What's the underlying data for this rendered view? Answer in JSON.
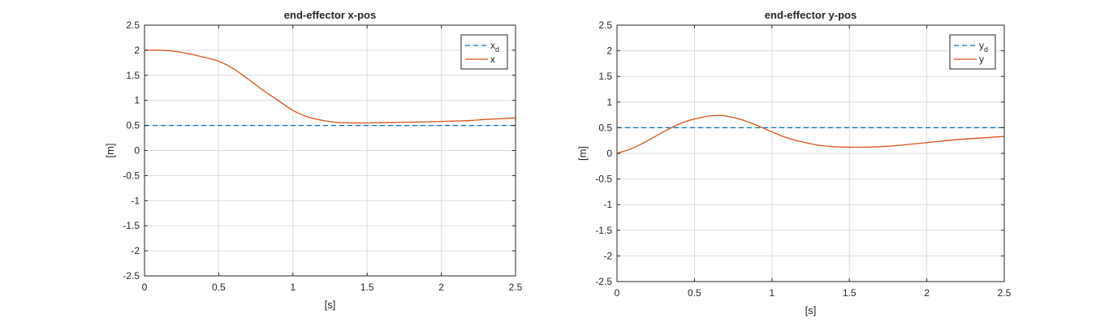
{
  "chart_data": [
    {
      "type": "line",
      "title": "end-effector x-pos",
      "xlabel": "[s]",
      "ylabel": "[m]",
      "xlim": [
        0,
        2.5
      ],
      "ylim": [
        -2.5,
        2.5
      ],
      "xticks": [
        0,
        0.5,
        1,
        1.5,
        2,
        2.5
      ],
      "xtick_labels": [
        "0",
        "0.5",
        "1",
        "1.5",
        "2",
        "2.5"
      ],
      "yticks": [
        -2.5,
        -2,
        -1.5,
        -1,
        -0.5,
        0,
        0.5,
        1,
        1.5,
        2,
        2.5
      ],
      "ytick_labels": [
        "-2.5",
        "-2",
        "-1.5",
        "-1",
        "-0.5",
        "0",
        "0.5",
        "1",
        "1.5",
        "2",
        "2.5"
      ],
      "grid": true,
      "legend_position": "top-right",
      "series": [
        {
          "name": "x",
          "name_subscript": "d",
          "style": "dashed",
          "color": "#0072BD",
          "x": [
            0,
            2.5
          ],
          "y": [
            0.5,
            0.5
          ]
        },
        {
          "name": "x",
          "name_subscript": "",
          "style": "solid",
          "color": "#D95319",
          "x": [
            0,
            0.1,
            0.2,
            0.3,
            0.4,
            0.5,
            0.6,
            0.7,
            0.8,
            0.9,
            1.0,
            1.1,
            1.2,
            1.3,
            1.4,
            1.5,
            1.6,
            1.7,
            1.8,
            1.9,
            2.0,
            2.1,
            2.2,
            2.3,
            2.4,
            2.5
          ],
          "y": [
            2.0,
            2.0,
            1.98,
            1.93,
            1.86,
            1.78,
            1.63,
            1.42,
            1.2,
            1.0,
            0.8,
            0.67,
            0.6,
            0.56,
            0.55,
            0.55,
            0.555,
            0.56,
            0.565,
            0.57,
            0.58,
            0.59,
            0.6,
            0.62,
            0.635,
            0.65
          ]
        }
      ]
    },
    {
      "type": "line",
      "title": "end-effector y-pos",
      "xlabel": "[s]",
      "ylabel": "[m]",
      "xlim": [
        0,
        2.5
      ],
      "ylim": [
        -2.5,
        2.5
      ],
      "xticks": [
        0,
        0.5,
        1,
        1.5,
        2,
        2.5
      ],
      "xtick_labels": [
        "0",
        "0.5",
        "1",
        "1.5",
        "2",
        "2.5"
      ],
      "yticks": [
        -2.5,
        -2,
        -1.5,
        -1,
        -0.5,
        0,
        0.5,
        1,
        1.5,
        2,
        2.5
      ],
      "ytick_labels": [
        "-2.5",
        "-2",
        "-1.5",
        "-1",
        "-0.5",
        "0",
        "0.5",
        "1",
        "1.5",
        "2",
        "2.5"
      ],
      "grid": true,
      "legend_position": "top-right",
      "series": [
        {
          "name": "y",
          "name_subscript": "d",
          "style": "dashed",
          "color": "#0072BD",
          "x": [
            0,
            2.5
          ],
          "y": [
            0.5,
            0.5
          ]
        },
        {
          "name": "y",
          "name_subscript": "",
          "style": "solid",
          "color": "#D95319",
          "x": [
            0,
            0.1,
            0.2,
            0.3,
            0.4,
            0.5,
            0.6,
            0.65,
            0.7,
            0.8,
            0.9,
            1.0,
            1.1,
            1.2,
            1.3,
            1.4,
            1.5,
            1.6,
            1.7,
            1.8,
            1.9,
            2.0,
            2.1,
            2.2,
            2.3,
            2.4,
            2.5
          ],
          "y": [
            0.0,
            0.1,
            0.25,
            0.42,
            0.57,
            0.67,
            0.73,
            0.74,
            0.73,
            0.66,
            0.55,
            0.42,
            0.3,
            0.22,
            0.16,
            0.13,
            0.12,
            0.12,
            0.13,
            0.15,
            0.18,
            0.21,
            0.24,
            0.27,
            0.29,
            0.31,
            0.33
          ]
        }
      ]
    }
  ]
}
